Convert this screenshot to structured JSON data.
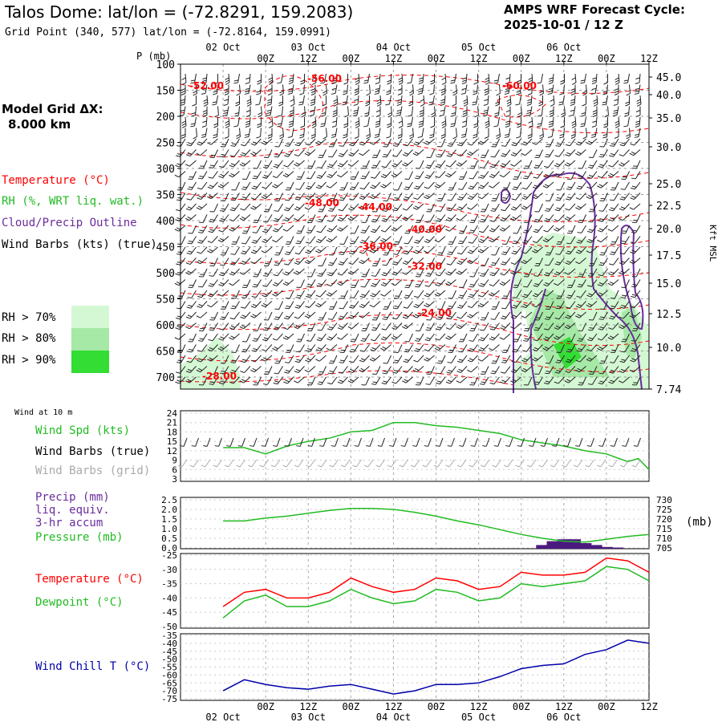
{
  "header": {
    "title": "Talos Dome:  lat/lon = (-72.8291, 159.2083)",
    "grid_point": "Grid Point (340, 577) lat/lon = (-72.8164, 159.0991)",
    "cycle_line1": "AMPS WRF Forecast Cycle:",
    "cycle_line2": "2025-10-01 / 12  Z"
  },
  "left_legend": {
    "model_grid_line1": "Model Grid ΔX:",
    "model_grid_line2": "8.000 km",
    "temperature": "Temperature (°C)",
    "rh": "RH (%, WRT liq. wat.)",
    "cloud": "Cloud/Precip Outline",
    "wind_barbs": "Wind Barbs (kts) (true)",
    "rh70": "RH > 70%",
    "rh80": "RH > 80%",
    "rh90": "RH > 90%"
  },
  "colors": {
    "temperature": "#ff0000",
    "rh": "#22bb22",
    "cloud": "#6a2c9c",
    "rh70": "#d4f7d4",
    "rh80": "#a6e8a6",
    "rh90": "#33dd33",
    "precip": "#4b1a80",
    "windchill": "#0000aa",
    "grid_gray": "#888888"
  },
  "time_axis": {
    "top_labels": [
      "00Z",
      "12Z",
      "00Z",
      "12Z",
      "00Z",
      "12Z",
      "00Z",
      "12Z",
      "00Z",
      "12Z"
    ],
    "bottom_labels": [
      "00Z",
      "12Z",
      "00Z",
      "12Z",
      "00Z",
      "12Z",
      "00Z",
      "12Z",
      "00Z",
      "12Z"
    ],
    "dates": [
      "02 Oct",
      "03 Oct",
      "04 Oct",
      "05 Oct",
      "06 Oct"
    ],
    "bottom_dates": [
      "02 Oct",
      "03 Oct",
      "04 Oct",
      "05 Oct",
      "06 Oct"
    ]
  },
  "chart_data": [
    {
      "type": "time-height cross-section",
      "pressure_label": "P (mb)",
      "pressure_levels": [
        100,
        150,
        200,
        250,
        300,
        350,
        400,
        450,
        500,
        550,
        600,
        650,
        700
      ],
      "right_axis_label": "Kft MSL",
      "right_axis_ticks": [
        "45.0",
        "40.0",
        "35.0",
        "30.0",
        "25.0",
        "22.5",
        "20.0",
        "17.5",
        "15.0",
        "12.5",
        "10.0",
        "7.74"
      ],
      "temperature_contour_labels": [
        "-52.00",
        "-56.00",
        "-60.00",
        "-48.00",
        "-44.00",
        "-40.00",
        "-36.00",
        "-32.00",
        "-24.00",
        "-28.00"
      ]
    },
    {
      "type": "line",
      "title": "Wind at 10 m",
      "legend": [
        "Wind Spd (kts)",
        "Wind Barbs (true)",
        "Wind Barbs (grid)"
      ],
      "y_ticks": [
        24,
        21,
        18,
        15,
        12,
        9,
        6,
        3
      ],
      "ylim": [
        3,
        24
      ],
      "x_hours": [
        0,
        6,
        12,
        18,
        24,
        30,
        36,
        42,
        48,
        54,
        60,
        66,
        72,
        78,
        84,
        90,
        96,
        102,
        108,
        114,
        117,
        120
      ],
      "series": [
        {
          "name": "Wind Spd (kts)",
          "values": [
            13,
            13,
            11,
            13.5,
            15,
            16,
            18,
            18.5,
            21,
            21,
            20,
            19.5,
            18.5,
            17.5,
            15.5,
            14.5,
            13.5,
            12,
            11,
            8.5,
            9.5,
            6
          ]
        }
      ]
    },
    {
      "type": "line+bar",
      "legend": [
        "Precip (mm)",
        "liq. equiv.",
        "3-hr accum",
        "Pressure (mb)"
      ],
      "left_ticks": [
        "2.5",
        "2.0",
        "1.5",
        "1.0",
        "0.5",
        "0.0"
      ],
      "right_ticks": [
        "730",
        "725",
        "720",
        "715",
        "710",
        "705"
      ],
      "right_unit": "(mb)",
      "ylim_precip": [
        0,
        2.5
      ],
      "ylim_pressure": [
        705,
        730
      ],
      "x_hours": [
        0,
        6,
        12,
        18,
        24,
        30,
        36,
        42,
        48,
        54,
        60,
        66,
        72,
        78,
        84,
        90,
        96,
        102,
        108,
        114,
        120
      ],
      "series": [
        {
          "name": "Pressure (mb)",
          "values": [
            719,
            719,
            720.5,
            721.5,
            723,
            724.5,
            725.5,
            725.5,
            725,
            723.5,
            721.5,
            719,
            717,
            714.5,
            712,
            710,
            708.5,
            708,
            709.5,
            711,
            712
          ]
        }
      ],
      "precip": {
        "x_hours": [
          90,
          93,
          96,
          99,
          102,
          105,
          108,
          111
        ],
        "values": [
          0.15,
          0.35,
          0.45,
          0.45,
          0.25,
          0.15,
          0.05,
          0.02
        ]
      }
    },
    {
      "type": "line",
      "legend": [
        "Temperature (°C)",
        "Dewpoint (°C)"
      ],
      "y_ticks": [
        -25,
        -30,
        -35,
        -40,
        -45,
        -50
      ],
      "ylim": [
        -50,
        -25
      ],
      "x_hours": [
        0,
        6,
        12,
        18,
        24,
        30,
        36,
        42,
        48,
        54,
        60,
        66,
        72,
        78,
        84,
        90,
        96,
        102,
        108,
        114,
        120
      ],
      "series": [
        {
          "name": "Temperature (°C)",
          "values": [
            -43,
            -38,
            -37,
            -40,
            -40,
            -38,
            -33,
            -36,
            -38,
            -37,
            -33,
            -34,
            -37,
            -36,
            -31,
            -32,
            -32,
            -31,
            -26,
            -27,
            -31
          ]
        },
        {
          "name": "Dewpoint (°C)",
          "values": [
            -47,
            -41,
            -39,
            -43,
            -43,
            -41,
            -37,
            -40,
            -42,
            -41,
            -37,
            -38,
            -41,
            -40,
            -35,
            -36,
            -35,
            -34,
            -29,
            -30,
            -34
          ]
        }
      ]
    },
    {
      "type": "line",
      "legend": [
        "Wind Chill T (°C)"
      ],
      "y_ticks": [
        -35,
        -40,
        -45,
        -50,
        -55,
        -60,
        -65,
        -70,
        -75
      ],
      "ylim": [
        -75,
        -35
      ],
      "x_hours": [
        0,
        6,
        12,
        18,
        24,
        30,
        36,
        42,
        48,
        54,
        60,
        66,
        72,
        78,
        84,
        90,
        96,
        102,
        108,
        114,
        120
      ],
      "series": [
        {
          "name": "Wind Chill T (°C)",
          "values": [
            -70,
            -63,
            -66,
            -68,
            -69,
            -67,
            -66,
            -69,
            -72,
            -70,
            -66,
            -66,
            -65,
            -61,
            -56,
            -54,
            -53,
            -47,
            -44,
            -38,
            -40
          ]
        }
      ]
    }
  ]
}
